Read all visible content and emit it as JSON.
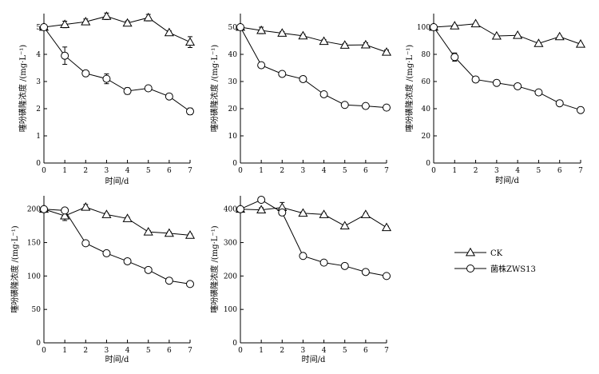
{
  "figure": {
    "legend": {
      "ck": "CK",
      "zws": "菌株ZWS13"
    }
  },
  "chart_data": [
    {
      "type": "line",
      "title": "",
      "xlabel": "时间/d",
      "ylabel": "噻吩磺隆浓度 /(mg·L⁻¹)",
      "x": [
        0,
        1,
        2,
        3,
        4,
        5,
        6,
        7
      ],
      "xlim": [
        0,
        7
      ],
      "ylim": [
        0,
        5.5
      ],
      "yticks": [
        0,
        1,
        2,
        3,
        4,
        5
      ],
      "ytick_labels": [
        "0",
        "1",
        "2",
        "3",
        "4",
        "5"
      ],
      "series": [
        {
          "name": "CK",
          "marker": "triangle",
          "values": [
            5.0,
            5.1,
            5.2,
            5.4,
            5.15,
            5.35,
            4.8,
            4.45
          ],
          "errors": [
            0,
            0.12,
            0.1,
            0.12,
            0.08,
            0.12,
            0.06,
            0.2
          ]
        },
        {
          "name": "菌株ZWS13",
          "marker": "circle",
          "values": [
            5.0,
            3.95,
            3.3,
            3.1,
            2.65,
            2.75,
            2.45,
            1.9
          ],
          "errors": [
            0,
            0.32,
            0.06,
            0.18,
            0.12,
            0.1,
            0.08,
            0.12
          ]
        }
      ]
    },
    {
      "type": "line",
      "title": "",
      "xlabel": "",
      "ylabel": "噻吩磺隆浓度 /(mg·L⁻¹)",
      "x": [
        0,
        1,
        2,
        3,
        4,
        5,
        6,
        7
      ],
      "xlim": [
        0,
        7
      ],
      "ylim": [
        0,
        55
      ],
      "yticks": [
        0,
        10,
        20,
        30,
        40,
        50
      ],
      "ytick_labels": [
        "0",
        "10",
        "20",
        "30",
        "40",
        "50"
      ],
      "series": [
        {
          "name": "CK",
          "marker": "triangle",
          "values": [
            50,
            48.8,
            47.8,
            46.8,
            44.8,
            43.4,
            43.5,
            40.8
          ],
          "errors": [
            0,
            1.2,
            0.6,
            0.6,
            0.6,
            0.6,
            0.8,
            0.8
          ]
        },
        {
          "name": "菌株ZWS13",
          "marker": "circle",
          "values": [
            50,
            36.0,
            32.8,
            30.9,
            25.3,
            21.4,
            21.0,
            20.4
          ],
          "errors": [
            0,
            1.0,
            0.8,
            0.6,
            0.8,
            0.8,
            0.5,
            0.5
          ]
        }
      ]
    },
    {
      "type": "line",
      "title": "",
      "xlabel": "时间/d",
      "ylabel": "噻吩磺隆浓度 /(mg·L⁻¹)",
      "x": [
        0,
        1,
        2,
        3,
        4,
        5,
        6,
        7
      ],
      "xlim": [
        0,
        7
      ],
      "ylim": [
        0,
        110
      ],
      "yticks": [
        0,
        20,
        40,
        60,
        80,
        100
      ],
      "ytick_labels": [
        "0",
        "20",
        "40",
        "60",
        "80",
        "100"
      ],
      "series": [
        {
          "name": "CK",
          "marker": "triangle",
          "values": [
            100,
            101,
            102.5,
            93.5,
            94,
            88,
            93,
            87.5
          ],
          "errors": [
            0,
            0.8,
            0.6,
            0.6,
            0.6,
            0.6,
            0.6,
            0.6
          ]
        },
        {
          "name": "菌株ZWS13",
          "marker": "circle",
          "values": [
            100,
            78,
            61.5,
            59,
            56.5,
            52,
            44,
            39
          ],
          "errors": [
            0,
            3.0,
            0.6,
            0.6,
            0.6,
            1.5,
            0.6,
            2.0
          ]
        }
      ]
    },
    {
      "type": "line",
      "title": "",
      "xlabel": "时间/d",
      "ylabel": "噻吩磺隆浓度 /(mg·L⁻¹)",
      "x": [
        0,
        1,
        2,
        3,
        4,
        5,
        6,
        7
      ],
      "xlim": [
        0,
        7
      ],
      "ylim": [
        0,
        220
      ],
      "yticks": [
        0,
        50,
        100,
        150,
        200
      ],
      "ytick_labels": [
        "0",
        "50",
        "100",
        "150",
        "200"
      ],
      "series": [
        {
          "name": "CK",
          "marker": "triangle",
          "values": [
            200,
            190,
            203,
            192,
            186,
            166,
            164,
            161
          ],
          "errors": [
            0,
            7,
            4,
            2,
            2,
            2,
            2,
            2
          ]
        },
        {
          "name": "菌株ZWS13",
          "marker": "circle",
          "values": [
            200,
            198,
            149,
            134,
            122,
            109,
            93,
            88
          ],
          "errors": [
            0,
            2,
            2,
            2,
            2,
            2,
            2,
            2
          ]
        }
      ]
    },
    {
      "type": "line",
      "title": "",
      "xlabel": "时间/d",
      "ylabel": "噻吩磺隆浓度 /(mg·L⁻¹)",
      "x": [
        0,
        1,
        2,
        3,
        4,
        5,
        6,
        7
      ],
      "xlim": [
        0,
        7
      ],
      "ylim": [
        0,
        440
      ],
      "yticks": [
        0,
        100,
        200,
        300,
        400
      ],
      "ytick_labels": [
        "0",
        "100",
        "200",
        "300",
        "400"
      ],
      "series": [
        {
          "name": "CK",
          "marker": "triangle",
          "values": [
            400,
            398,
            405,
            388,
            384,
            350,
            384,
            345
          ],
          "errors": [
            0,
            6,
            15,
            4,
            4,
            4,
            4,
            4
          ]
        },
        {
          "name": "菌株ZWS13",
          "marker": "circle",
          "values": [
            400,
            428,
            390,
            260,
            240,
            230,
            212,
            200
          ],
          "errors": [
            0,
            6,
            6,
            4,
            4,
            4,
            4,
            4
          ]
        }
      ]
    }
  ]
}
